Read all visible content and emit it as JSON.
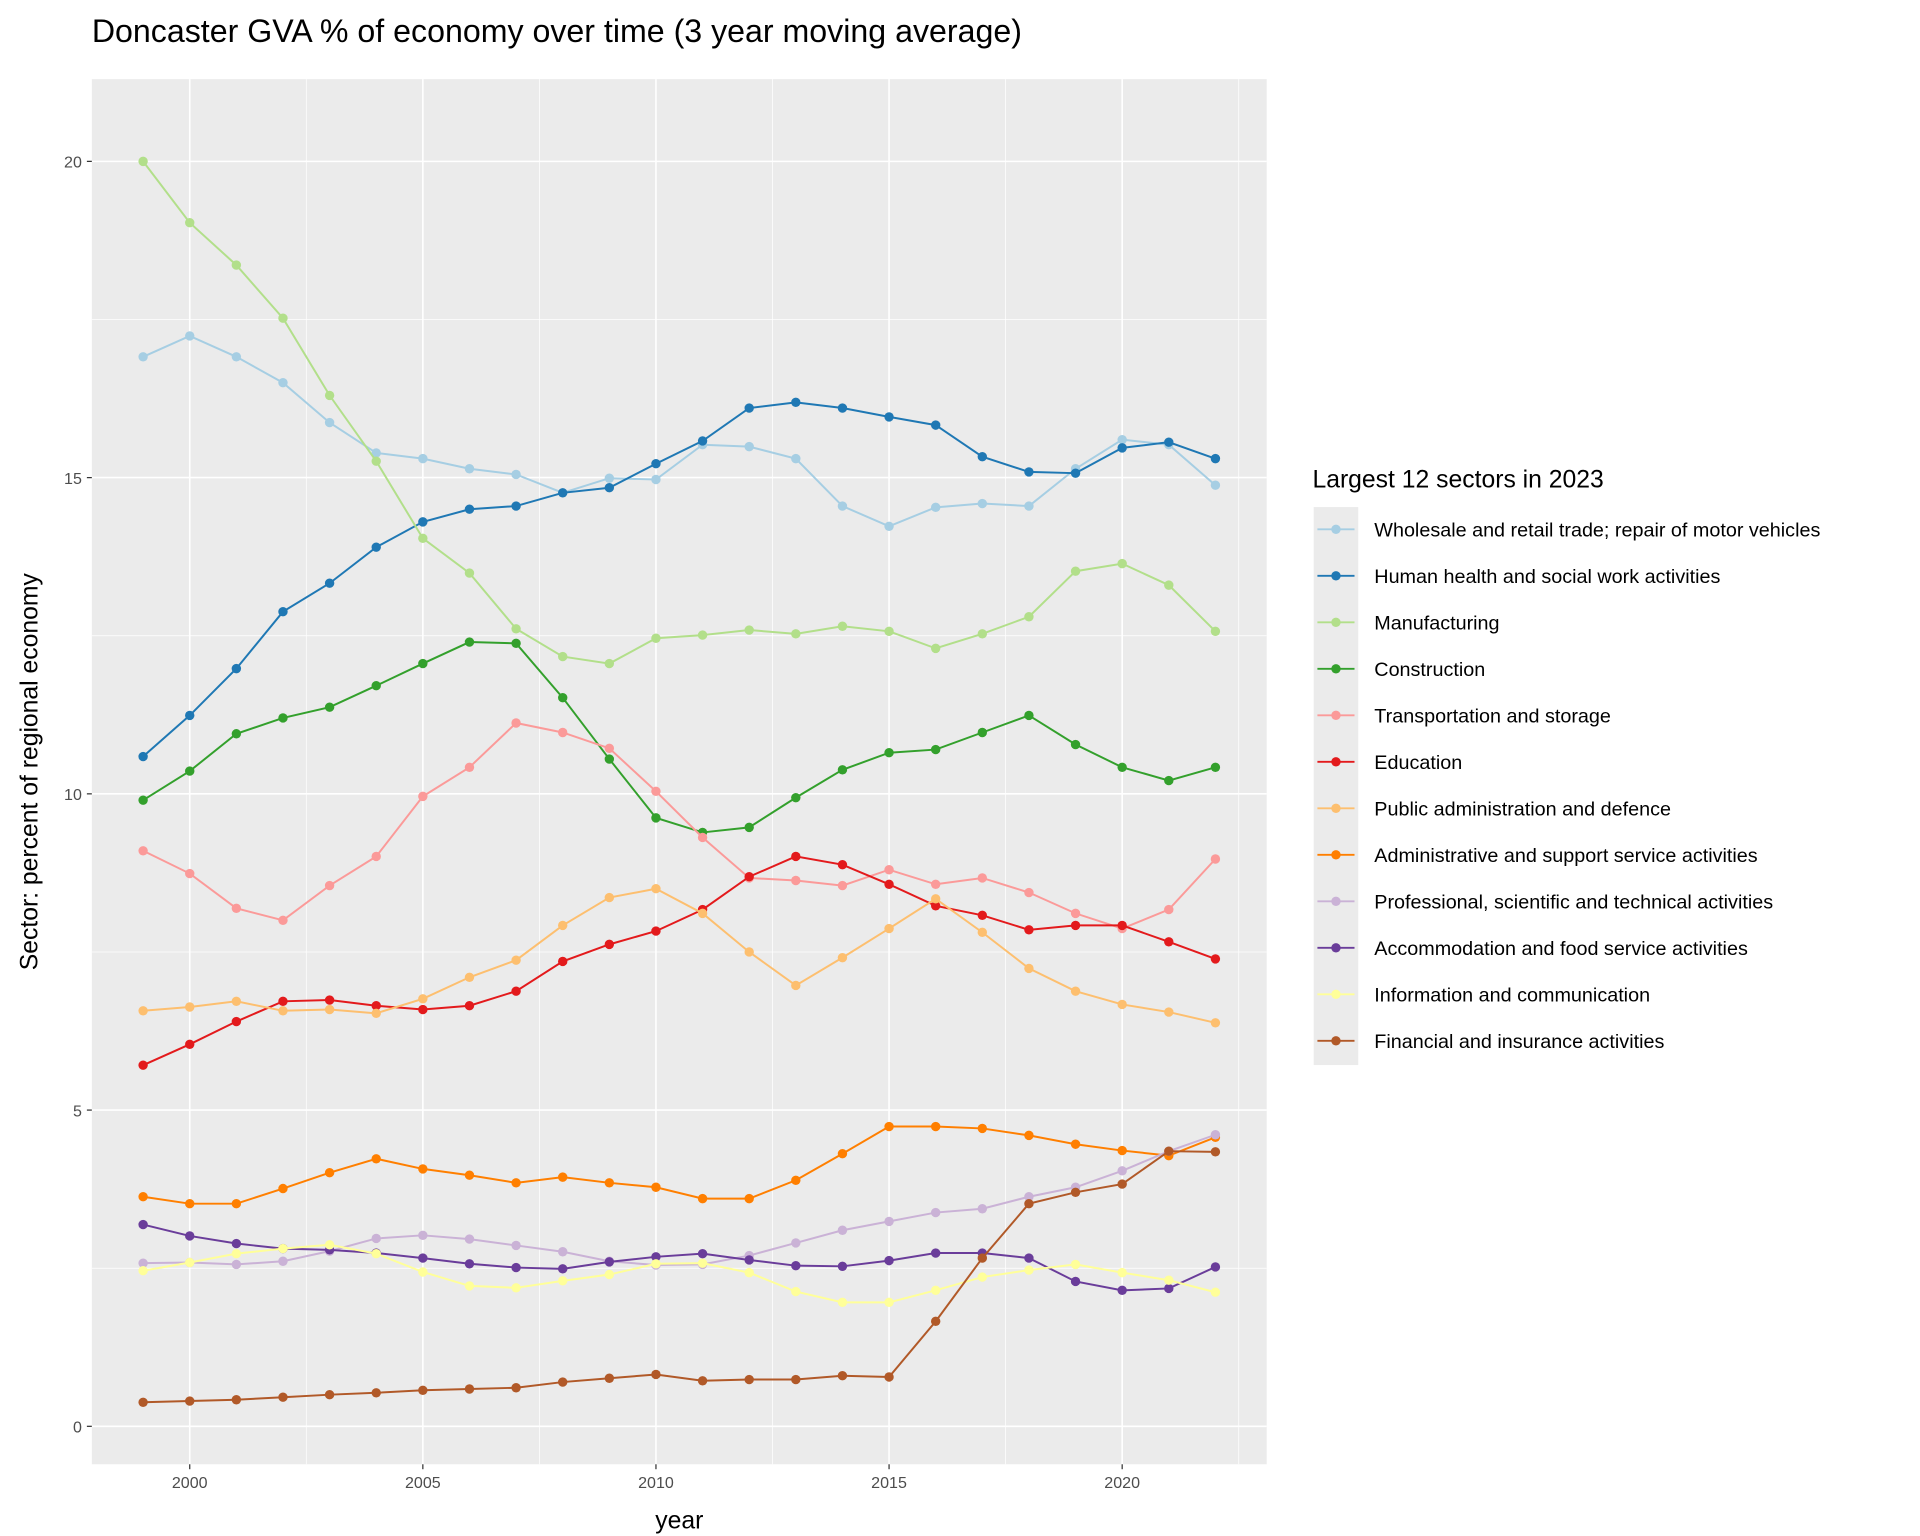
{
  "chart_data": {
    "type": "line",
    "title": "Doncaster GVA % of economy over time (3 year moving average)",
    "xlabel": "year",
    "ylabel": "Sector: percent of regional economy",
    "xlim": [
      1997.9,
      2023.1
    ],
    "ylim": [
      -0.6,
      21.3
    ],
    "xticks": [
      2000,
      2005,
      2010,
      2015,
      2020
    ],
    "yticks": [
      0,
      5,
      10,
      15,
      20
    ],
    "grid": true,
    "background": "#EBEBEB",
    "legend": {
      "title": "Largest 12 sectors in 2023",
      "position": "right"
    },
    "x": [
      1999,
      2000,
      2001,
      2002,
      2003,
      2004,
      2005,
      2006,
      2007,
      2008,
      2009,
      2010,
      2011,
      2012,
      2013,
      2014,
      2015,
      2016,
      2017,
      2018,
      2019,
      2020,
      2021,
      2022
    ],
    "series": [
      {
        "name": "Wholesale and retail trade; repair of motor vehicles",
        "color": "#A6CEE3",
        "values": [
          16.91,
          17.24,
          16.91,
          16.5,
          15.87,
          15.39,
          15.3,
          15.14,
          15.05,
          14.76,
          14.99,
          14.97,
          15.52,
          15.49,
          15.3,
          14.55,
          14.23,
          14.53,
          14.59,
          14.55,
          15.14,
          15.6,
          15.52,
          14.88
        ]
      },
      {
        "name": "Human health and social work activities",
        "color": "#1F78B4",
        "values": [
          10.59,
          11.24,
          11.98,
          12.88,
          13.33,
          13.9,
          14.3,
          14.5,
          14.55,
          14.76,
          14.84,
          15.22,
          15.58,
          16.1,
          16.19,
          16.1,
          15.96,
          15.83,
          15.33,
          15.09,
          15.07,
          15.47,
          15.56,
          15.3
        ]
      },
      {
        "name": "Manufacturing",
        "color": "#B2DF8A",
        "values": [
          20.0,
          19.03,
          18.36,
          17.52,
          16.3,
          15.26,
          14.04,
          13.49,
          12.61,
          12.17,
          12.06,
          12.46,
          12.51,
          12.59,
          12.53,
          12.65,
          12.57,
          12.3,
          12.53,
          12.8,
          13.52,
          13.64,
          13.3,
          12.57
        ]
      },
      {
        "name": "Construction",
        "color": "#33A02C",
        "values": [
          9.9,
          10.36,
          10.95,
          11.2,
          11.37,
          11.71,
          12.06,
          12.4,
          12.38,
          11.52,
          10.55,
          9.62,
          9.39,
          9.47,
          9.94,
          10.38,
          10.65,
          10.7,
          10.97,
          11.24,
          10.78,
          10.42,
          10.21,
          10.42
        ]
      },
      {
        "name": "Transportation and storage",
        "color": "#FB9A99",
        "values": [
          9.1,
          8.74,
          8.19,
          8.0,
          8.55,
          9.01,
          9.96,
          10.42,
          11.12,
          10.97,
          10.72,
          10.04,
          9.31,
          8.67,
          8.63,
          8.55,
          8.8,
          8.57,
          8.67,
          8.44,
          8.11,
          7.87,
          8.17,
          8.97
        ]
      },
      {
        "name": "Education",
        "color": "#E31A1C",
        "values": [
          5.71,
          6.04,
          6.4,
          6.72,
          6.74,
          6.65,
          6.59,
          6.65,
          6.88,
          7.35,
          7.62,
          7.83,
          8.17,
          8.69,
          9.01,
          8.88,
          8.57,
          8.23,
          8.08,
          7.85,
          7.92,
          7.92,
          7.66,
          7.39
        ]
      },
      {
        "name": "Public administration and defence",
        "color": "#FDBF6F",
        "values": [
          6.57,
          6.63,
          6.72,
          6.57,
          6.59,
          6.53,
          6.76,
          7.1,
          7.37,
          7.92,
          8.36,
          8.5,
          8.11,
          7.5,
          6.97,
          7.41,
          7.87,
          8.34,
          7.81,
          7.24,
          6.88,
          6.67,
          6.55,
          6.38
        ]
      },
      {
        "name": "Administrative and support service activities",
        "color": "#FF7F00",
        "values": [
          3.63,
          3.52,
          3.52,
          3.76,
          4.01,
          4.23,
          4.07,
          3.97,
          3.85,
          3.94,
          3.85,
          3.78,
          3.6,
          3.6,
          3.89,
          4.31,
          4.74,
          4.74,
          4.71,
          4.6,
          4.46,
          4.36,
          4.28,
          4.57
        ]
      },
      {
        "name": "Professional, scientific and technical activities",
        "color": "#CAB2D6",
        "values": [
          2.58,
          2.59,
          2.56,
          2.61,
          2.77,
          2.97,
          3.02,
          2.96,
          2.86,
          2.76,
          2.61,
          2.55,
          2.56,
          2.7,
          2.9,
          3.1,
          3.24,
          3.38,
          3.44,
          3.63,
          3.78,
          4.04,
          4.35,
          4.61
        ]
      },
      {
        "name": "Accommodation and food service activities",
        "color": "#6A3D9A",
        "values": [
          3.19,
          3.01,
          2.89,
          2.81,
          2.79,
          2.74,
          2.66,
          2.57,
          2.51,
          2.49,
          2.6,
          2.68,
          2.73,
          2.63,
          2.54,
          2.53,
          2.62,
          2.74,
          2.74,
          2.66,
          2.29,
          2.15,
          2.18,
          2.52
        ]
      },
      {
        "name": "Information and communication",
        "color": "#FFFF99",
        "values": [
          2.46,
          2.59,
          2.73,
          2.81,
          2.87,
          2.73,
          2.44,
          2.22,
          2.19,
          2.3,
          2.4,
          2.57,
          2.58,
          2.43,
          2.13,
          1.96,
          1.96,
          2.15,
          2.36,
          2.47,
          2.56,
          2.43,
          2.31,
          2.12
        ]
      },
      {
        "name": "Financial and insurance activities",
        "color": "#B15928",
        "values": [
          0.38,
          0.4,
          0.42,
          0.46,
          0.5,
          0.53,
          0.57,
          0.59,
          0.61,
          0.7,
          0.76,
          0.82,
          0.72,
          0.74,
          0.74,
          0.8,
          0.78,
          1.66,
          2.66,
          3.52,
          3.7,
          3.83,
          4.35,
          4.34
        ]
      }
    ]
  }
}
